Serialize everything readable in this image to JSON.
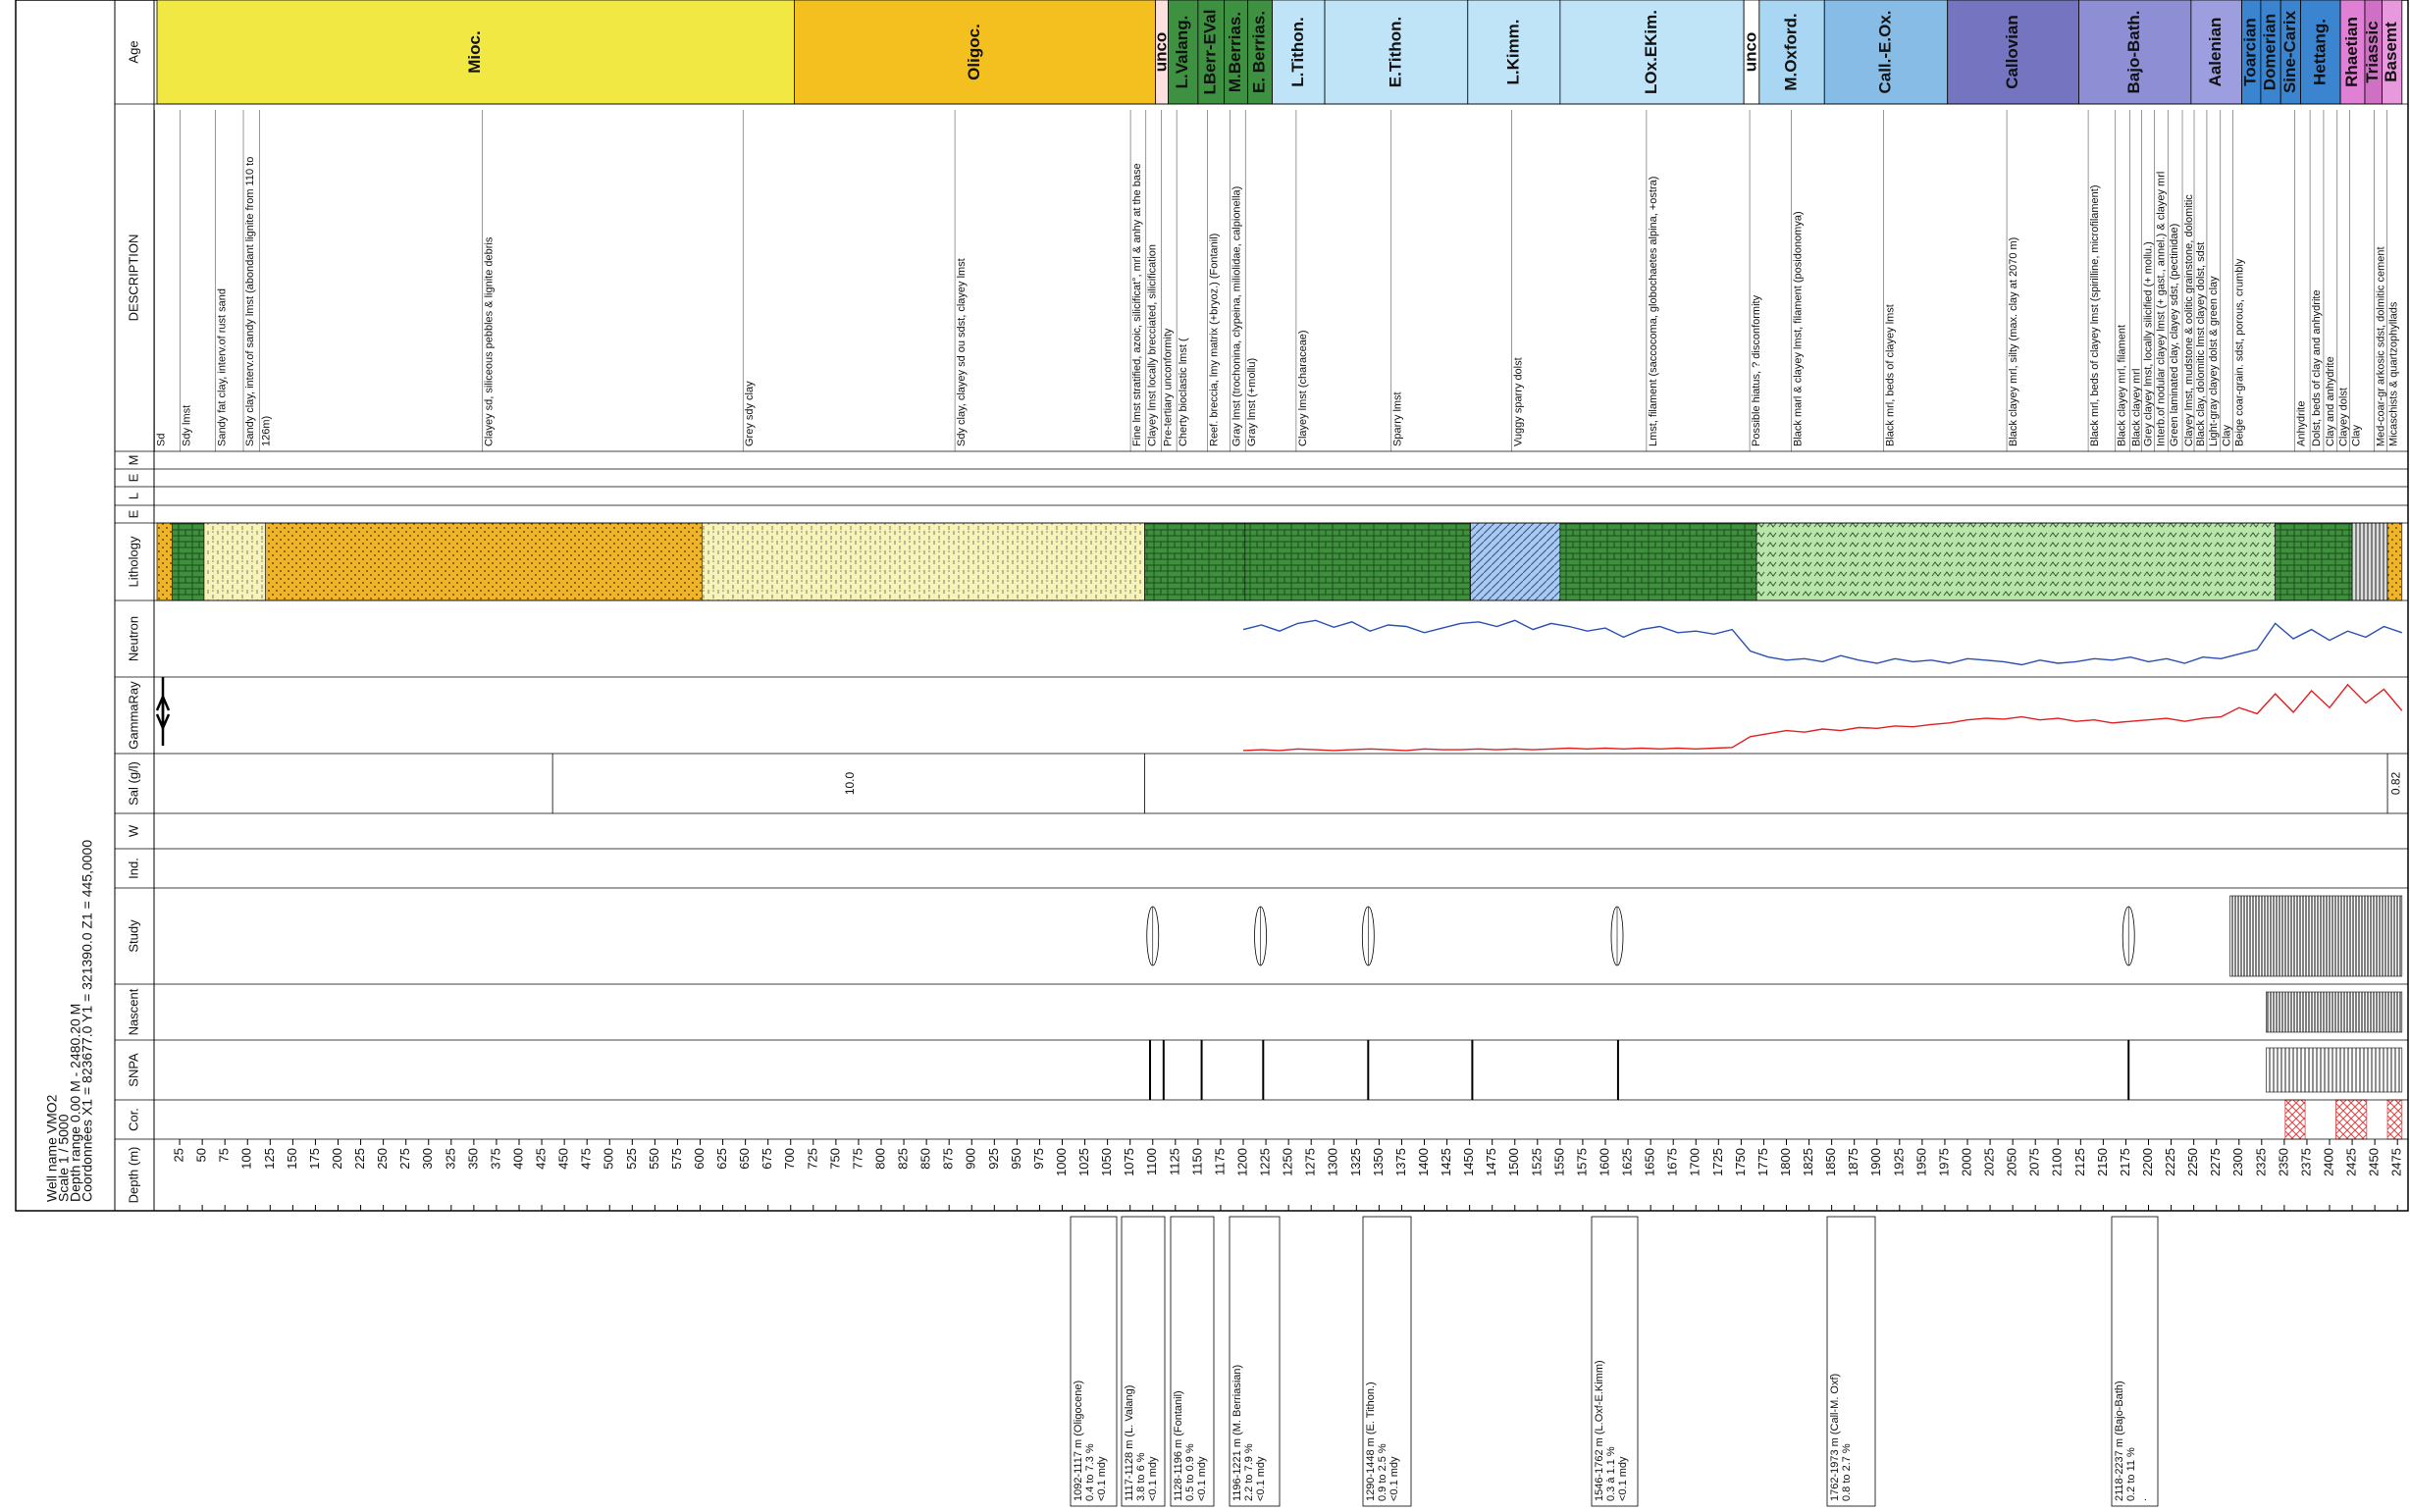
{
  "header": {
    "lines": [
      "Well name VMO2",
      "Scale 1 / 5000",
      "Depth range 0.00 M - 2480.20 M",
      "Coordonnées X1 = 823677.0  Y1 = 321390.0  Z1 = 445,0000"
    ]
  },
  "tracks": [
    "Age",
    "DESCRIPTION",
    "M",
    "E",
    "L",
    "E",
    "Lithology",
    "Sal (g/l)",
    "W",
    "Ind.",
    "Study",
    "Nascent",
    "SNPA",
    "Cor.",
    "Depth (m)"
  ],
  "chart_data": {
    "type": "well-log",
    "xlim": [
      0,
      2480.2
    ],
    "xticks": [
      25,
      50,
      75,
      100,
      125,
      150,
      175,
      200,
      225,
      250,
      275,
      300,
      325,
      350,
      375,
      400,
      425,
      450,
      475,
      500,
      525,
      550,
      575,
      600,
      625,
      650,
      675,
      700,
      725,
      750,
      775,
      800,
      825,
      850,
      875,
      900,
      925,
      950,
      975,
      1000,
      1025,
      1050,
      1075,
      1100,
      1125,
      1150,
      1175,
      1200,
      1225,
      1250,
      1275,
      1300,
      1325,
      1350,
      1375,
      1400,
      1425,
      1450,
      1475,
      1500,
      1525,
      1550,
      1575,
      1600,
      1625,
      1650,
      1675,
      1700,
      1725,
      1750,
      1775,
      1800,
      1825,
      1850,
      1875,
      1900,
      1925,
      1950,
      1975,
      2000,
      2025,
      2050,
      2075,
      2100,
      2125,
      2150,
      2175,
      2200,
      2225,
      2250,
      2275,
      2300,
      2325,
      2350,
      2375,
      2400,
      2425,
      2450,
      2475
    ],
    "ages": [
      {
        "name": "Mioc.",
        "top": 0,
        "base": 704,
        "color": "#f2e843"
      },
      {
        "name": "Oligoc.",
        "top": 704,
        "base": 1103,
        "color": "#f4c020"
      },
      {
        "name": "unco",
        "top": 1103,
        "base": 1117,
        "color": "#ffe0e0"
      },
      {
        "name": "L.Valang.",
        "top": 1117,
        "base": 1150,
        "color": "#3d9140"
      },
      {
        "name": "LBerr-EVal",
        "top": 1150,
        "base": 1179,
        "color": "#3d9140"
      },
      {
        "name": "M.Berrias.",
        "top": 1179,
        "base": 1205,
        "color": "#3d9140"
      },
      {
        "name": "E. Berrias.",
        "top": 1205,
        "base": 1232,
        "color": "#3d9140"
      },
      {
        "name": "L.Tithon.",
        "top": 1232,
        "base": 1290,
        "color": "#bfe4f7"
      },
      {
        "name": "E.Tithon.",
        "top": 1290,
        "base": 1448,
        "color": "#bfe4f7"
      },
      {
        "name": "L.Kimm.",
        "top": 1448,
        "base": 1550,
        "color": "#bfe4f7"
      },
      {
        "name": "LOx.EKim.",
        "top": 1550,
        "base": 1753,
        "color": "#bfe4f7"
      },
      {
        "name": "unco",
        "top": 1753,
        "base": 1770,
        "color": "#ffffff"
      },
      {
        "name": "M.Oxford.",
        "top": 1770,
        "base": 1842,
        "color": "#a9d6f2"
      },
      {
        "name": "Call.-E.Ox.",
        "top": 1842,
        "base": 1978,
        "color": "#86bce6"
      },
      {
        "name": "Callovian",
        "top": 1978,
        "base": 2123,
        "color": "#7474c0"
      },
      {
        "name": "Bajo-Bath.",
        "top": 2123,
        "base": 2247,
        "color": "#8e8ed4"
      },
      {
        "name": "Aalenian",
        "top": 2247,
        "base": 2303,
        "color": "#9d9ee0"
      },
      {
        "name": "Toarcian",
        "top": 2303,
        "base": 2324,
        "color": "#3a84d0"
      },
      {
        "name": "Domerian",
        "top": 2324,
        "base": 2346,
        "color": "#3a84d0"
      },
      {
        "name": "Sine-Carix",
        "top": 2346,
        "base": 2368,
        "color": "#3a84d0"
      },
      {
        "name": "Hettang.",
        "top": 2368,
        "base": 2412,
        "color": "#3a84d0"
      },
      {
        "name": "Rhaetian",
        "top": 2412,
        "base": 2439,
        "color": "#e080d4"
      },
      {
        "name": "Triassic",
        "top": 2439,
        "base": 2458,
        "color": "#d070c4"
      },
      {
        "name": "Basemt",
        "top": 2458,
        "base": 2480,
        "color": "#e898dc"
      }
    ],
    "descriptions": [
      {
        "text": "Sd",
        "depth": 5
      },
      {
        "text": "Sdy lmst",
        "depth": 33
      },
      {
        "text": "Sandy fat clay, interv.of rust sand",
        "depth": 72
      },
      {
        "text": "Sandy clay, interv.of sandy lmst (abondant lignite from 110 to",
        "depth": 103
      },
      {
        "text": "126m)",
        "depth": 121
      },
      {
        "text": "Clayey sd, siliceous pebbles & lignite debris",
        "depth": 367
      },
      {
        "text": "Grey sdy clay",
        "depth": 655
      },
      {
        "text": "Sdy clay, clayey sd ou sdst, clayey lmst",
        "depth": 889
      },
      {
        "text": "Fine lmst stratified, azoic, silicificat°, mrl & anhy at the base",
        "depth": 1083
      },
      {
        "text": "Clayey lmst locally brecciated, silicification",
        "depth": 1100
      },
      {
        "text": "Pre-tertiary unconformity",
        "depth": 1117
      },
      {
        "text": "Cherty bioclastic lmst (",
        "depth": 1134
      },
      {
        "text": "Reef. breccia, lmy matrix (+bryoz.)   (Fontanil)",
        "depth": 1168
      },
      {
        "text": "Gray lmst (trochonina, clypeina, miliolidae, calpionella)",
        "depth": 1193
      },
      {
        "text": "Gray lmst (+mollu)",
        "depth": 1210
      },
      {
        "text": "Clayey lmst (characeae)",
        "depth": 1266
      },
      {
        "text": "Sparry lmst",
        "depth": 1371
      },
      {
        "text": "Vuggy sparry dolst",
        "depth": 1504
      },
      {
        "text": "Lmst, filament (saccocoma, globochaetes alpina, +ostra)",
        "depth": 1653
      },
      {
        "text": "Possible hiatus, ? disconformity",
        "depth": 1767
      },
      {
        "text": "Black marl & clayey lmst, filament (posidonomya)",
        "depth": 1813
      },
      {
        "text": "Black mrl, beds of clayey lmst",
        "depth": 1915
      },
      {
        "text": "Black clayey mrl, silty (max. clay at 2070 m)",
        "depth": 2051
      },
      {
        "text": "Black mrl, beds of clayey lmst (spirilline, microfilament)",
        "depth": 2141
      },
      {
        "text": "Black clayey mrl, filament",
        "depth": 2171
      },
      {
        "text": "Black clayey mrl",
        "depth": 2187
      },
      {
        "text": "Grey clayey lmst, locally silicified (+ mollu.)",
        "depth": 2200
      },
      {
        "text": "Interb.of nodular clayey lmst (+ gast., annel.) & clayey mrl",
        "depth": 2214
      },
      {
        "text": "Green laminated clay, clayey sdst, (pectinidae)",
        "depth": 2229
      },
      {
        "text": "Clayey lmst, mudstone & oolitic grainstone, dolomitic",
        "depth": 2245
      },
      {
        "text": "Black clay, dolomitic lmst clayey dolst, sdst",
        "depth": 2258
      },
      {
        "text": "Light-gray clayey dolst & green clay",
        "depth": 2272
      },
      {
        "text": "Clay",
        "depth": 2287
      },
      {
        "text": "Beige coar-grain. sdst, porous, crumbly",
        "depth": 2301
      },
      {
        "text": "Anhydrite",
        "depth": 2369
      },
      {
        "text": "Dolst, beds of clay and anhydrite",
        "depth": 2386
      },
      {
        "text": "Clay and anhydrite",
        "depth": 2401
      },
      {
        "text": "Clayey dolst",
        "depth": 2416
      },
      {
        "text": "Clay",
        "depth": 2430
      },
      {
        "text": "Med-coar-gr arkosic sdst, dolmitic cement",
        "depth": 2457
      },
      {
        "text": "Micaschists & quartzophyllads",
        "depth": 2471
      }
    ],
    "lithology": [
      {
        "top": 0,
        "base": 17,
        "color": "#f0b429",
        "pattern": "dots"
      },
      {
        "top": 17,
        "base": 52,
        "color": "#3f8f3f",
        "pattern": "brick"
      },
      {
        "top": 52,
        "base": 120,
        "color": "#f8f4b8",
        "pattern": "dash"
      },
      {
        "top": 120,
        "base": 602,
        "color": "#f0b429",
        "pattern": "dots"
      },
      {
        "top": 602,
        "base": 1091,
        "color": "#f8f4b8",
        "pattern": "dash"
      },
      {
        "top": 1091,
        "base": 1202,
        "color": "#3f8f3f",
        "pattern": "brick"
      },
      {
        "top": 1202,
        "base": 1451,
        "color": "#3f8f3f",
        "pattern": "brick"
      },
      {
        "top": 1451,
        "base": 1550,
        "color": "#a9c9ef",
        "pattern": "diag"
      },
      {
        "top": 1550,
        "base": 1767,
        "color": "#3f8f3f",
        "pattern": "brick"
      },
      {
        "top": 1767,
        "base": 2340,
        "color": "#b9e4aa",
        "pattern": "wave"
      },
      {
        "top": 2340,
        "base": 2425,
        "color": "#3f8f3f",
        "pattern": "brick"
      },
      {
        "top": 2425,
        "base": 2464,
        "color": "#dddddd",
        "pattern": "lines"
      },
      {
        "top": 2464,
        "base": 2480,
        "color": "#f0b429",
        "pattern": "dots"
      }
    ],
    "x": [
      1200,
      1220,
      1240,
      1260,
      1280,
      1300,
      1320,
      1340,
      1360,
      1380,
      1400,
      1420,
      1440,
      1460,
      1480,
      1500,
      1520,
      1540,
      1560,
      1580,
      1600,
      1620,
      1640,
      1660,
      1680,
      1700,
      1720,
      1740,
      1760,
      1780,
      1800,
      1820,
      1840,
      1860,
      1880,
      1900,
      1920,
      1940,
      1960,
      1980,
      2000,
      2020,
      2040,
      2060,
      2080,
      2100,
      2120,
      2140,
      2160,
      2180,
      2200,
      2220,
      2240,
      2260,
      2280,
      2300,
      2320,
      2340,
      2360,
      2380,
      2400,
      2420,
      2440,
      2460,
      2480
    ],
    "series": [
      {
        "name": "Neutron",
        "color": "#2a4fb0",
        "ylim": [
          0,
          100
        ],
        "values": [
          62,
          68,
          60,
          70,
          74,
          65,
          72,
          60,
          68,
          66,
          58,
          64,
          70,
          72,
          66,
          74,
          62,
          70,
          66,
          60,
          64,
          52,
          62,
          66,
          58,
          60,
          56,
          62,
          34,
          26,
          22,
          24,
          20,
          28,
          22,
          18,
          24,
          20,
          22,
          18,
          24,
          22,
          20,
          16,
          22,
          18,
          20,
          24,
          22,
          26,
          20,
          24,
          18,
          26,
          24,
          30,
          36,
          70,
          50,
          62,
          48,
          60,
          52,
          66,
          58
        ]
      },
      {
        "name": "GammaRay",
        "color": "#e02020",
        "ylim": [
          0,
          100
        ],
        "values": [
          4,
          5,
          4,
          6,
          5,
          4,
          5,
          6,
          5,
          4,
          6,
          5,
          5,
          6,
          5,
          6,
          5,
          6,
          7,
          6,
          7,
          6,
          7,
          6,
          7,
          6,
          7,
          8,
          22,
          26,
          30,
          28,
          32,
          30,
          34,
          33,
          36,
          35,
          38,
          40,
          44,
          46,
          45,
          48,
          44,
          46,
          42,
          44,
          40,
          42,
          44,
          46,
          42,
          46,
          48,
          60,
          52,
          78,
          54,
          82,
          60,
          90,
          66,
          84,
          56
        ]
      }
    ],
    "sal": [
      {
        "label": "10.0",
        "depth": 766
      },
      {
        "label": "0.82",
        "depth": 2474
      }
    ],
    "sal_breaks": [
      437,
      1091,
      2464
    ],
    "study": [
      1100,
      1219,
      1338,
      1613,
      2178
    ],
    "study_dense": [
      2290,
      2480
    ],
    "nascent_dense": [
      2330,
      2480
    ],
    "snpa": [
      1097,
      1112,
      1154,
      1222,
      1338,
      1453,
      1614,
      2178
    ],
    "snpa_dense": [
      2330,
      2480
    ],
    "cor": [
      [
        2351,
        2373
      ],
      [
        2407,
        2441
      ],
      [
        2464,
        2480
      ]
    ]
  },
  "samples": [
    {
      "lines": [
        "1092-1117 m (Oligocene)",
        "0.4 to 7.3 %",
        "<0.1 mdy"
      ]
    },
    {
      "lines": [
        "1117-1128 m (L. Valang)",
        "3.8 to 6 %",
        "<0.1 mdy"
      ]
    },
    {
      "lines": [
        "1128-1196 m (Fontanil)",
        "0.5 to 0.9 %",
        "<0.1 mdy"
      ]
    },
    {
      "lines": [
        "1196-1221 m (M. Berriasian)",
        "2.2 to 7.9 %",
        "<0.1 mdy"
      ]
    },
    {
      "lines": [
        "1290-1448 m (E. Tithon.)",
        "0.9 to 2.5 %",
        "<0.1 mdy"
      ]
    },
    {
      "lines": [
        "1546-1762 m (L.Oxf-E.Kimm)",
        "0.3 à 1.1 %",
        "<0.1 mdy"
      ]
    },
    {
      "lines": [
        "1762-1973 m (Call-M. Oxf)",
        "0.8 to 2.7 %"
      ]
    },
    {
      "lines": [
        "2118-2237 m (Bajo-Bath)",
        "0.2 to 11 %",
        "."
      ]
    }
  ]
}
